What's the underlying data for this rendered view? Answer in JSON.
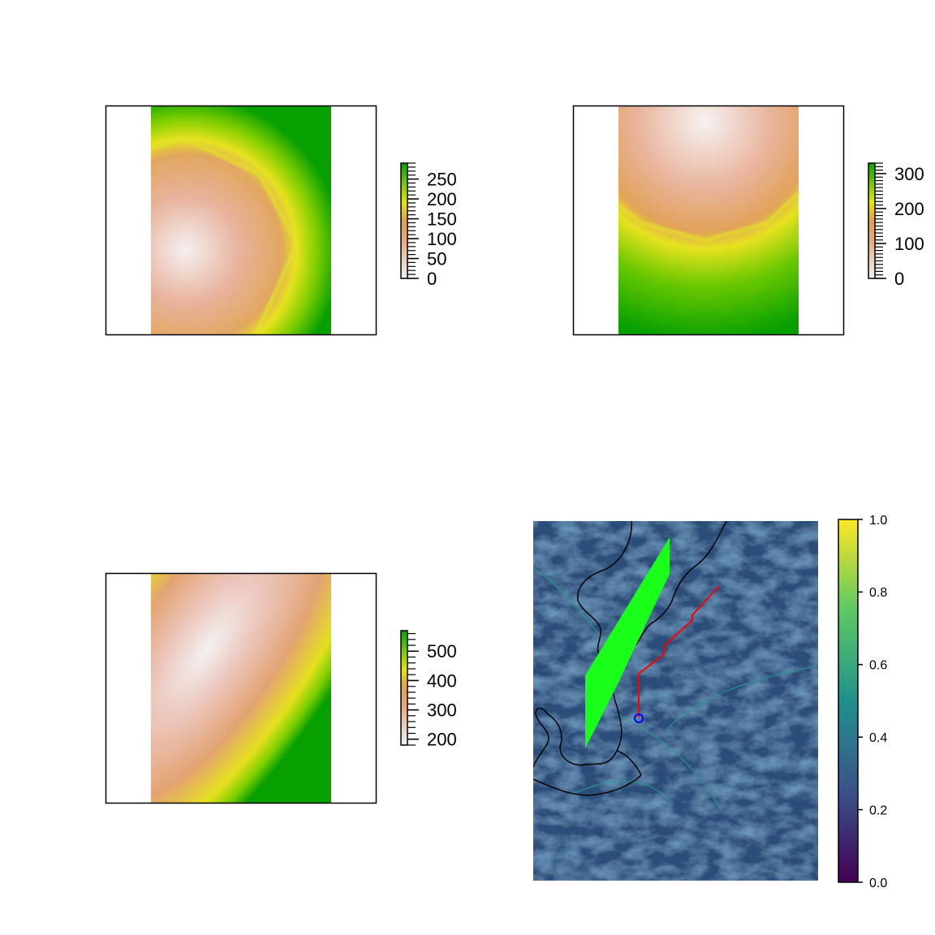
{
  "chart_data": [
    {
      "type": "heatmap",
      "title": "",
      "xlabel": "",
      "ylabel": "",
      "palette": [
        "#f2f2f2",
        "#e8aa80",
        "#e6e600",
        "#00a600"
      ],
      "legend": {
        "placement": "right",
        "range": [
          0,
          290
        ],
        "ticks": [
          0,
          50,
          100,
          150,
          200,
          250
        ]
      }
    },
    {
      "type": "heatmap",
      "title": "",
      "xlabel": "",
      "ylabel": "",
      "palette": [
        "#f2f2f2",
        "#e8aa80",
        "#e6e600",
        "#00a600"
      ],
      "legend": {
        "placement": "right",
        "range": [
          0,
          330
        ],
        "ticks": [
          0,
          100,
          200,
          300
        ]
      }
    },
    {
      "type": "heatmap",
      "title": "",
      "xlabel": "",
      "ylabel": "",
      "palette": [
        "#f2f2f2",
        "#e8aa80",
        "#e6e600",
        "#00a600"
      ],
      "legend": {
        "placement": "right",
        "range": [
          180,
          570
        ],
        "ticks": [
          200,
          300,
          400,
          500
        ]
      }
    },
    {
      "type": "heatmap",
      "title": "",
      "xlabel": "",
      "ylabel": "",
      "palette": [
        "#440154",
        "#3b528b",
        "#21908c",
        "#5dc863",
        "#fde725"
      ],
      "legend": {
        "placement": "right",
        "range": [
          0,
          1
        ],
        "ticks": [
          "0.0",
          "0.2",
          "0.4",
          "0.6",
          "0.8",
          "1.0"
        ]
      },
      "overlays": {
        "polygon_color": "#19ff19",
        "path_color": "#ff0000",
        "point_color": "#0000ff",
        "boundary_color": "#000000"
      }
    }
  ]
}
